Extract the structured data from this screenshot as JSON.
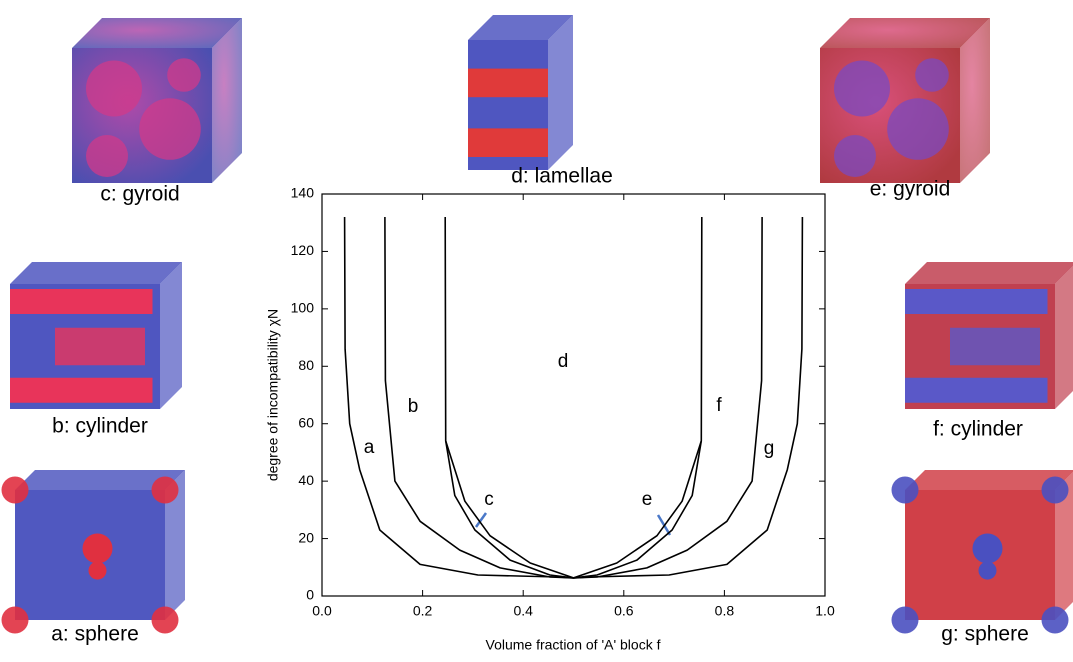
{
  "chart_data": {
    "type": "line",
    "x_label": "Volume fraction of 'A' block f",
    "y_label": "degree of incompatibility χN",
    "xlim": [
      0,
      1
    ],
    "ylim": [
      0,
      140
    ],
    "xticks": [
      {
        "value": 0,
        "label": "0.0"
      },
      0.2,
      0.4,
      0.6,
      0.8,
      {
        "value": 1,
        "label": "1.0"
      }
    ],
    "yticks": [
      0,
      20,
      40,
      60,
      80,
      100,
      120,
      140
    ],
    "series": [
      {
        "color": "#000000",
        "x": [
          0.045,
          0.046,
          0.055,
          0.075,
          0.115,
          0.195,
          0.31,
          0.47,
          0.5,
          0.53,
          0.69,
          0.805,
          0.885,
          0.925,
          0.945,
          0.954,
          0.955
        ],
        "values": [
          132,
          86,
          60,
          44,
          23,
          11,
          7.3,
          6.6,
          6.3,
          6.6,
          7.3,
          11,
          23,
          44,
          60,
          86,
          132
        ]
      },
      {
        "color": "#000000",
        "x": [
          0.125,
          0.126,
          0.145,
          0.195,
          0.274,
          0.354,
          0.453,
          0.5,
          0.547,
          0.646,
          0.726,
          0.805,
          0.855,
          0.874,
          0.875
        ],
        "values": [
          132,
          75,
          40,
          26,
          16,
          9.8,
          6.6,
          6.3,
          6.6,
          9.8,
          16,
          26,
          40,
          75,
          132
        ]
      },
      {
        "color": "#000000",
        "x": [
          0.245,
          0.246,
          0.264,
          0.304,
          0.374,
          0.453,
          0.5,
          0.547,
          0.626,
          0.696,
          0.736,
          0.754,
          0.755
        ],
        "values": [
          132,
          54,
          35,
          23,
          12.5,
          7.3,
          6.3,
          7.3,
          12.5,
          23,
          35,
          54,
          132
        ]
      },
      {
        "color": "#000000",
        "x": [
          0.246,
          0.284,
          0.334,
          0.414,
          0.5,
          0.586,
          0.666,
          0.716,
          0.754
        ],
        "values": [
          54,
          33,
          21,
          11.5,
          6.3,
          11.5,
          21,
          33,
          54
        ]
      }
    ],
    "region_labels": [
      "a",
      "b",
      "c",
      "d",
      "e",
      "f",
      "g"
    ],
    "panels": [
      "c:  gyroid",
      "d:  lamellae",
      "e:  gyroid",
      "b:  cylinder",
      "f:  cylinder",
      "a:  sphere",
      "g:  sphere"
    ]
  }
}
